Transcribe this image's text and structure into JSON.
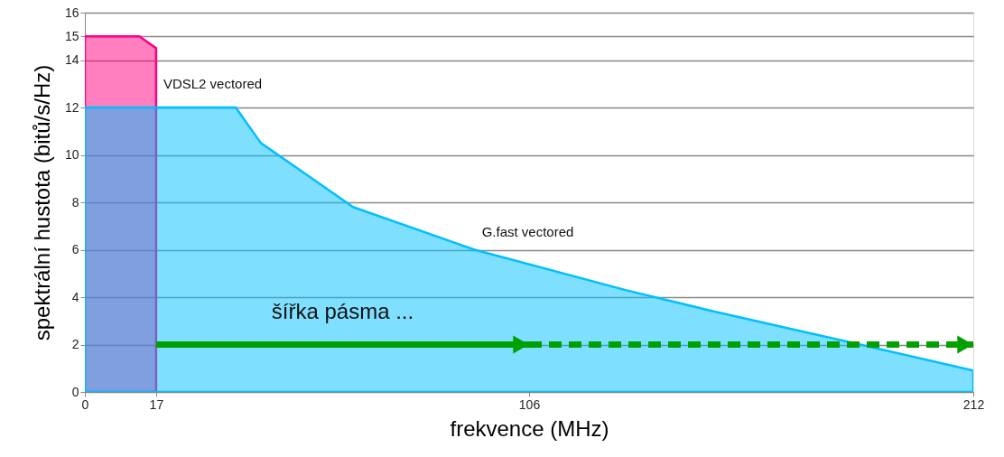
{
  "chart_data": {
    "type": "area",
    "xlabel": "frekvence (MHz)",
    "ylabel": "spektrální hustota (bitů/s/Hz)",
    "xlim": [
      0,
      212
    ],
    "xticks": [
      0,
      17,
      106,
      212
    ],
    "ylim": [
      0,
      16
    ],
    "yticks": [
      0,
      2,
      4,
      6,
      8,
      10,
      12,
      14,
      15,
      16
    ],
    "grid": "y",
    "series": [
      {
        "name": "VDSL2 vectored",
        "color": "#ff0080",
        "x": [
          0,
          13,
          17
        ],
        "values": [
          15,
          15,
          14.5
        ]
      },
      {
        "name": "G.fast vectored",
        "color": "#00bfff",
        "x": [
          0,
          36,
          42,
          51,
          64,
          93,
          129,
          150,
          185,
          212
        ],
        "values": [
          12,
          12,
          10.5,
          9.4,
          7.8,
          6,
          4.3,
          3.4,
          2,
          0.9
        ]
      }
    ],
    "annotations": [
      "šířka pásma ..."
    ]
  }
}
